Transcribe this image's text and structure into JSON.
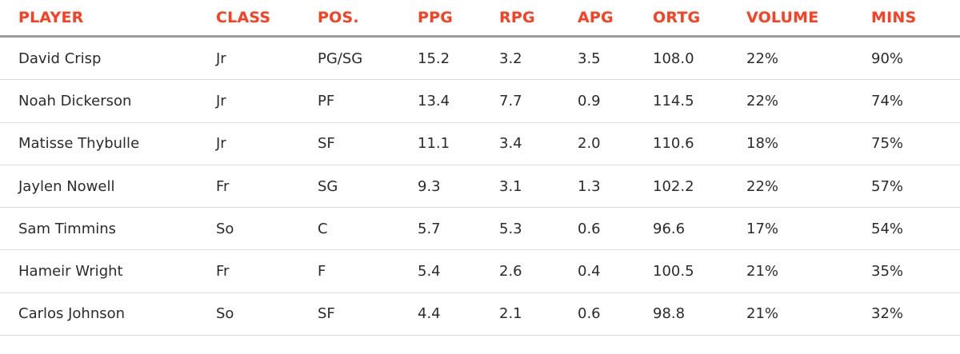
{
  "columns": [
    "PLAYER",
    "CLASS",
    "POS.",
    "PPG",
    "RPG",
    "APG",
    "ORTG",
    "VOLUME",
    "MINS"
  ],
  "rows": [
    [
      "David Crisp",
      "Jr",
      "PG/SG",
      "15.2",
      "3.2",
      "3.5",
      "108.0",
      "22%",
      "90%"
    ],
    [
      "Noah Dickerson",
      "Jr",
      "PF",
      "13.4",
      "7.7",
      "0.9",
      "114.5",
      "22%",
      "74%"
    ],
    [
      "Matisse Thybulle",
      "Jr",
      "SF",
      "11.1",
      "3.4",
      "2.0",
      "110.6",
      "18%",
      "75%"
    ],
    [
      "Jaylen Nowell",
      "Fr",
      "SG",
      "9.3",
      "3.1",
      "1.3",
      "102.2",
      "22%",
      "57%"
    ],
    [
      "Sam Timmins",
      "So",
      "C",
      "5.7",
      "5.3",
      "0.6",
      "96.6",
      "17%",
      "54%"
    ],
    [
      "Hameir Wright",
      "Fr",
      "F",
      "5.4",
      "2.6",
      "0.4",
      "100.5",
      "21%",
      "35%"
    ],
    [
      "Carlos Johnson",
      "So",
      "SF",
      "4.4",
      "2.1",
      "0.6",
      "98.8",
      "21%",
      "32%"
    ]
  ],
  "colors": {
    "header_text": "#ff3d1f",
    "body_text": "#2b2b2b",
    "header_rule": "#9c9c9c",
    "row_rule": "#dcdcdc"
  }
}
